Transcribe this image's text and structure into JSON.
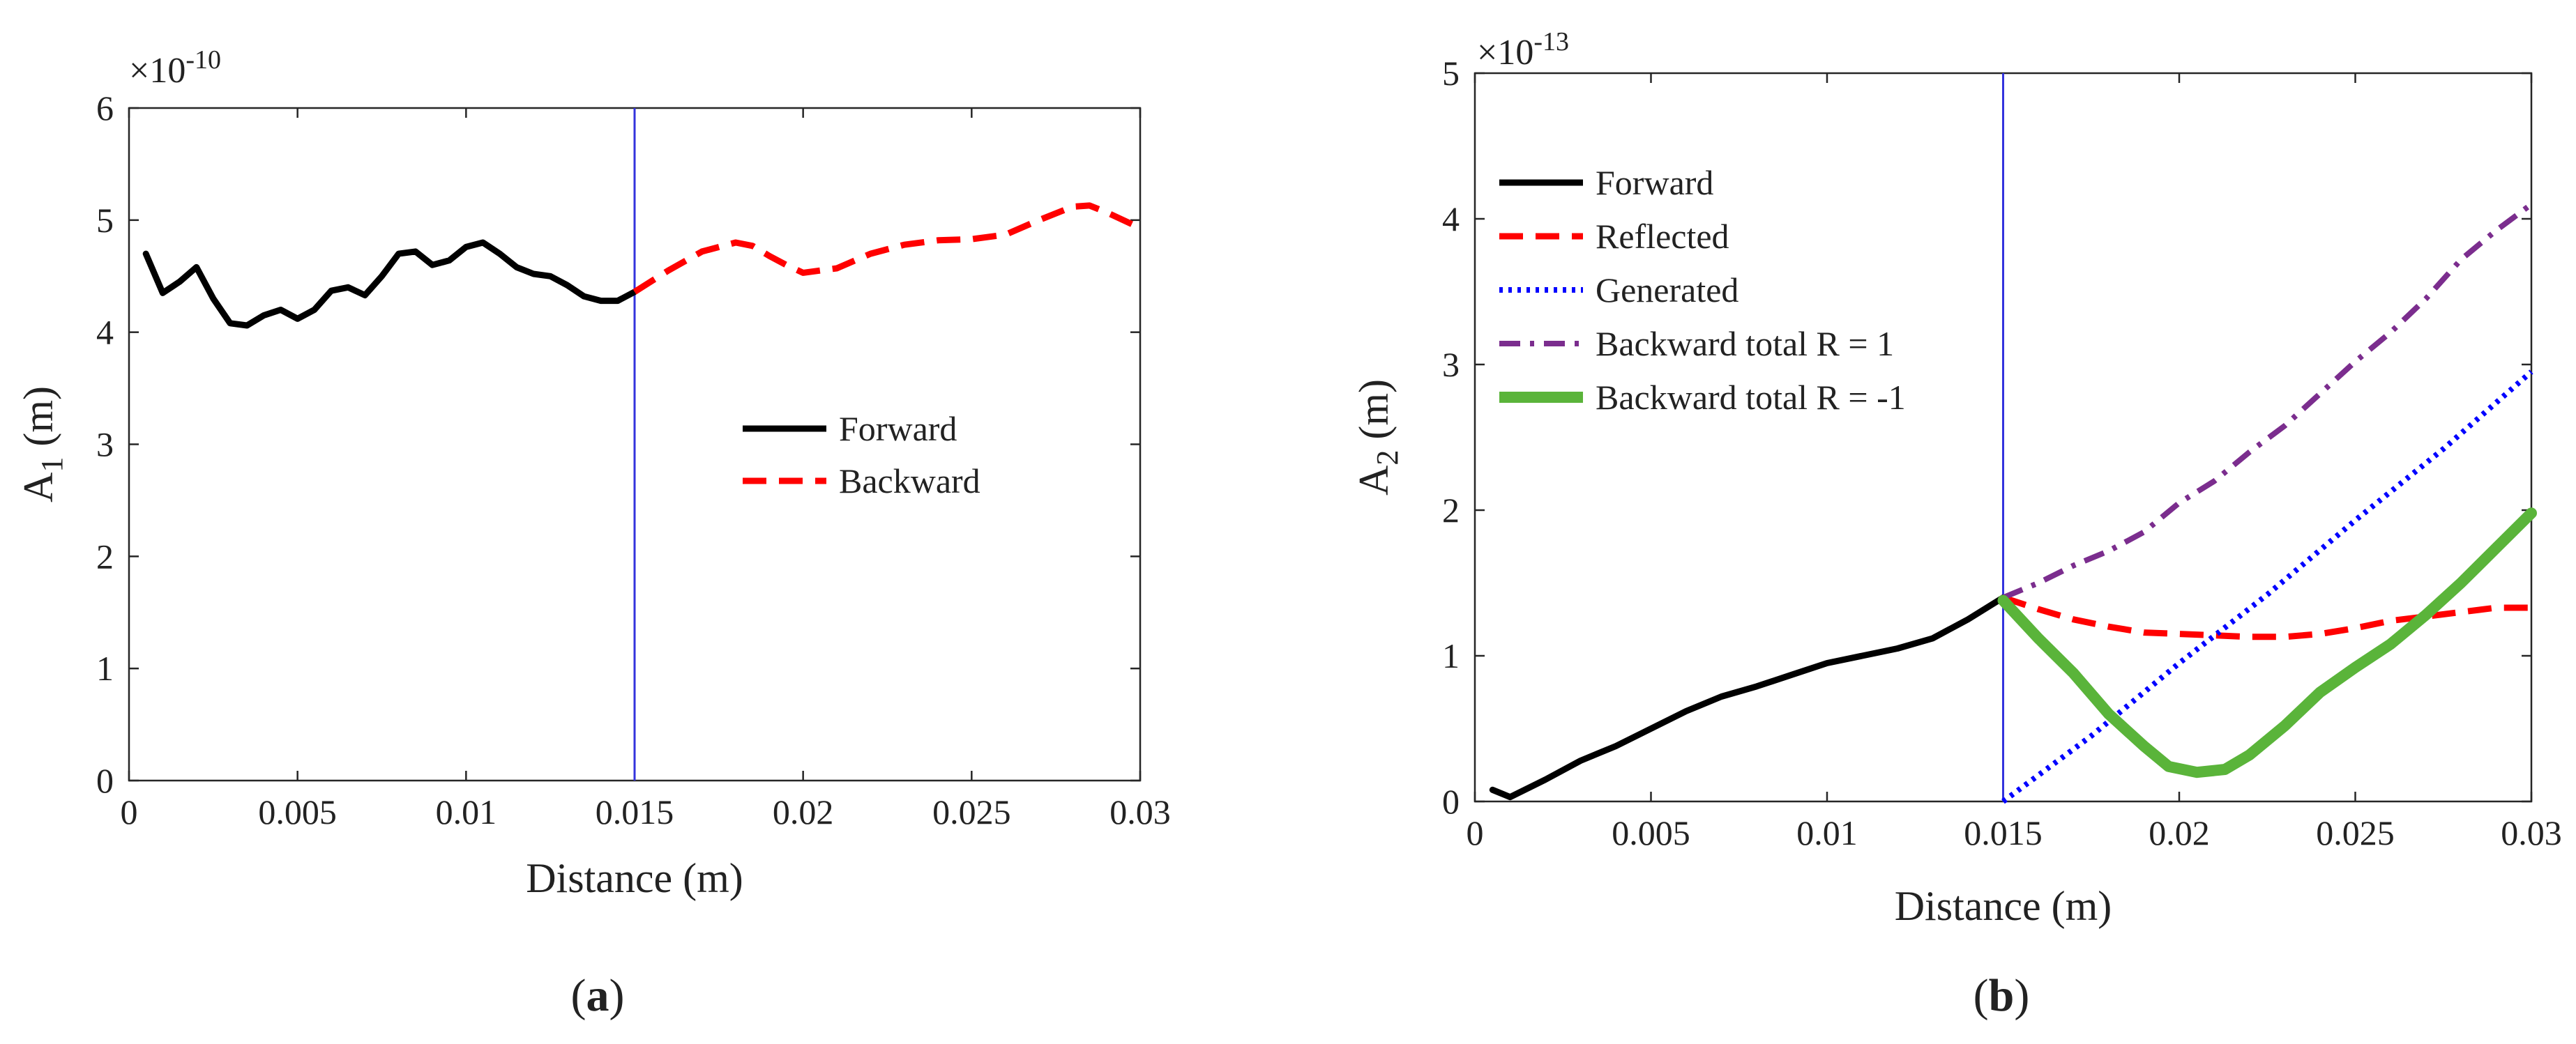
{
  "chart_data": [
    {
      "type": "line",
      "panel_label": "(a)",
      "xlabel": "Distance (m)",
      "ylabel": "A",
      "ylabel_sub": "1",
      "ylabel_unit": " (m)",
      "y_multiplier": "×10",
      "y_multiplier_exp": "-10",
      "xlim": [
        0,
        0.03
      ],
      "ylim": [
        0,
        6
      ],
      "x_ticks": [
        "0",
        "0.005",
        "0.01",
        "0.015",
        "0.02",
        "0.025",
        "0.03"
      ],
      "y_ticks": [
        "0",
        "1",
        "2",
        "3",
        "4",
        "5",
        "6"
      ],
      "x_tick_values": [
        0,
        0.005,
        0.01,
        0.015,
        0.02,
        0.025,
        0.03
      ],
      "y_tick_values": [
        0,
        1,
        2,
        3,
        4,
        5,
        6
      ],
      "boundary_x": 0.015,
      "legend_position": "center-right",
      "series": [
        {
          "name": "Forward",
          "style": "solid",
          "color": "#000000",
          "points": [
            [
              0.0005,
              4.7
            ],
            [
              0.001,
              4.35
            ],
            [
              0.0015,
              4.45
            ],
            [
              0.002,
              4.58
            ],
            [
              0.0025,
              4.3
            ],
            [
              0.003,
              4.08
            ],
            [
              0.0035,
              4.06
            ],
            [
              0.004,
              4.15
            ],
            [
              0.0045,
              4.2
            ],
            [
              0.005,
              4.12
            ],
            [
              0.0055,
              4.2
            ],
            [
              0.006,
              4.37
            ],
            [
              0.0065,
              4.4
            ],
            [
              0.007,
              4.33
            ],
            [
              0.0075,
              4.5
            ],
            [
              0.008,
              4.7
            ],
            [
              0.0085,
              4.72
            ],
            [
              0.009,
              4.6
            ],
            [
              0.0095,
              4.64
            ],
            [
              0.01,
              4.76
            ],
            [
              0.0105,
              4.8
            ],
            [
              0.011,
              4.7
            ],
            [
              0.0115,
              4.58
            ],
            [
              0.012,
              4.52
            ],
            [
              0.0125,
              4.5
            ],
            [
              0.013,
              4.42
            ],
            [
              0.0135,
              4.32
            ],
            [
              0.014,
              4.28
            ],
            [
              0.0145,
              4.28
            ],
            [
              0.015,
              4.36
            ]
          ]
        },
        {
          "name": "Backward",
          "style": "dashed",
          "color": "#ff0000",
          "points": [
            [
              0.015,
              4.36
            ],
            [
              0.016,
              4.55
            ],
            [
              0.017,
              4.72
            ],
            [
              0.018,
              4.8
            ],
            [
              0.0185,
              4.77
            ],
            [
              0.019,
              4.68
            ],
            [
              0.0195,
              4.6
            ],
            [
              0.02,
              4.53
            ],
            [
              0.021,
              4.57
            ],
            [
              0.022,
              4.7
            ],
            [
              0.023,
              4.78
            ],
            [
              0.024,
              4.82
            ],
            [
              0.025,
              4.83
            ],
            [
              0.026,
              4.87
            ],
            [
              0.027,
              5.0
            ],
            [
              0.028,
              5.12
            ],
            [
              0.0285,
              5.13
            ],
            [
              0.029,
              5.07
            ],
            [
              0.03,
              4.93
            ]
          ]
        }
      ]
    },
    {
      "type": "line",
      "panel_label": "(b)",
      "xlabel": "Distance (m)",
      "ylabel": "A",
      "ylabel_sub": "2",
      "ylabel_unit": " (m)",
      "y_multiplier": "×10",
      "y_multiplier_exp": "-13",
      "xlim": [
        0,
        0.03
      ],
      "ylim": [
        0,
        5
      ],
      "x_ticks": [
        "0",
        "0.005",
        "0.01",
        "0.015",
        "0.02",
        "0.025",
        "0.03"
      ],
      "y_ticks": [
        "0",
        "1",
        "2",
        "3",
        "4",
        "5"
      ],
      "x_tick_values": [
        0,
        0.005,
        0.01,
        0.015,
        0.02,
        0.025,
        0.03
      ],
      "y_tick_values": [
        0,
        1,
        2,
        3,
        4,
        5
      ],
      "boundary_x": 0.015,
      "legend_position": "top-left",
      "series": [
        {
          "name": "Forward",
          "style": "solid",
          "color": "#000000",
          "points": [
            [
              0.0005,
              0.08
            ],
            [
              0.001,
              0.03
            ],
            [
              0.002,
              0.15
            ],
            [
              0.003,
              0.28
            ],
            [
              0.004,
              0.38
            ],
            [
              0.005,
              0.5
            ],
            [
              0.006,
              0.62
            ],
            [
              0.007,
              0.72
            ],
            [
              0.008,
              0.79
            ],
            [
              0.009,
              0.87
            ],
            [
              0.01,
              0.95
            ],
            [
              0.011,
              1.0
            ],
            [
              0.012,
              1.05
            ],
            [
              0.013,
              1.12
            ],
            [
              0.014,
              1.25
            ],
            [
              0.015,
              1.4
            ]
          ]
        },
        {
          "name": "Reflected",
          "style": "dashed",
          "color": "#ff0000",
          "points": [
            [
              0.015,
              1.4
            ],
            [
              0.016,
              1.32
            ],
            [
              0.017,
              1.25
            ],
            [
              0.018,
              1.2
            ],
            [
              0.019,
              1.16
            ],
            [
              0.02,
              1.15
            ],
            [
              0.021,
              1.14
            ],
            [
              0.022,
              1.13
            ],
            [
              0.023,
              1.13
            ],
            [
              0.024,
              1.15
            ],
            [
              0.025,
              1.19
            ],
            [
              0.026,
              1.24
            ],
            [
              0.027,
              1.27
            ],
            [
              0.028,
              1.3
            ],
            [
              0.029,
              1.33
            ],
            [
              0.03,
              1.33
            ]
          ]
        },
        {
          "name": "Generated",
          "style": "dotted",
          "color": "#0000ff",
          "points": [
            [
              0.015,
              0.0
            ],
            [
              0.0175,
              0.45
            ],
            [
              0.02,
              0.95
            ],
            [
              0.0225,
              1.42
            ],
            [
              0.025,
              1.93
            ],
            [
              0.0275,
              2.42
            ],
            [
              0.03,
              2.95
            ]
          ]
        },
        {
          "name": "Backward total R = 1",
          "style": "dashdot",
          "color": "#7b2d8e",
          "points": [
            [
              0.015,
              1.4
            ],
            [
              0.016,
              1.5
            ],
            [
              0.017,
              1.62
            ],
            [
              0.018,
              1.72
            ],
            [
              0.019,
              1.85
            ],
            [
              0.02,
              2.05
            ],
            [
              0.021,
              2.2
            ],
            [
              0.022,
              2.4
            ],
            [
              0.023,
              2.58
            ],
            [
              0.024,
              2.8
            ],
            [
              0.025,
              3.02
            ],
            [
              0.026,
              3.22
            ],
            [
              0.027,
              3.45
            ],
            [
              0.028,
              3.72
            ],
            [
              0.029,
              3.92
            ],
            [
              0.03,
              4.1
            ]
          ]
        },
        {
          "name": "Backward total R = -1",
          "style": "solid-thick",
          "color": "#5ab43a",
          "points": [
            [
              0.015,
              1.38
            ],
            [
              0.016,
              1.12
            ],
            [
              0.017,
              0.88
            ],
            [
              0.018,
              0.6
            ],
            [
              0.019,
              0.38
            ],
            [
              0.0197,
              0.24
            ],
            [
              0.0205,
              0.2
            ],
            [
              0.0213,
              0.22
            ],
            [
              0.022,
              0.32
            ],
            [
              0.023,
              0.52
            ],
            [
              0.024,
              0.75
            ],
            [
              0.025,
              0.92
            ],
            [
              0.026,
              1.08
            ],
            [
              0.027,
              1.28
            ],
            [
              0.028,
              1.5
            ],
            [
              0.029,
              1.74
            ],
            [
              0.03,
              1.98
            ]
          ]
        }
      ]
    }
  ]
}
